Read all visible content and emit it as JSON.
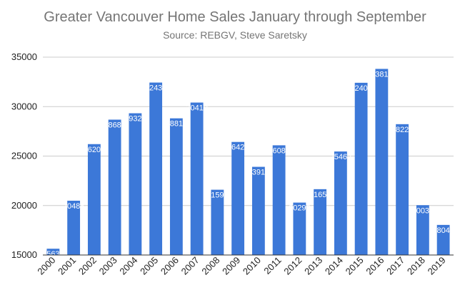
{
  "chart_data": {
    "type": "bar",
    "title": "Greater Vancouver Home Sales January through September",
    "subtitle": "Source: REBGV, Steve Saretsky",
    "categories": [
      "2000",
      "2001",
      "2002",
      "2003",
      "2004",
      "2005",
      "2006",
      "2007",
      "2008",
      "2009",
      "2010",
      "2011",
      "2012",
      "2013",
      "2014",
      "2015",
      "2016",
      "2017",
      "2018",
      "2019"
    ],
    "values": [
      15635,
      20488,
      26209,
      28683,
      29328,
      32431,
      28815,
      30410,
      21598,
      26429,
      23913,
      26089,
      20298,
      21654,
      25462,
      32409,
      33813,
      28225,
      20036,
      18042
    ],
    "ylim": [
      15000,
      35000
    ],
    "yticks": [
      15000,
      20000,
      25000,
      30000,
      35000
    ],
    "xlabel": "",
    "ylabel": "",
    "grid": true,
    "legend": "none",
    "bar_color": "#3c78d8",
    "grid_color": "#cccccc",
    "axis_color": "#333333"
  }
}
